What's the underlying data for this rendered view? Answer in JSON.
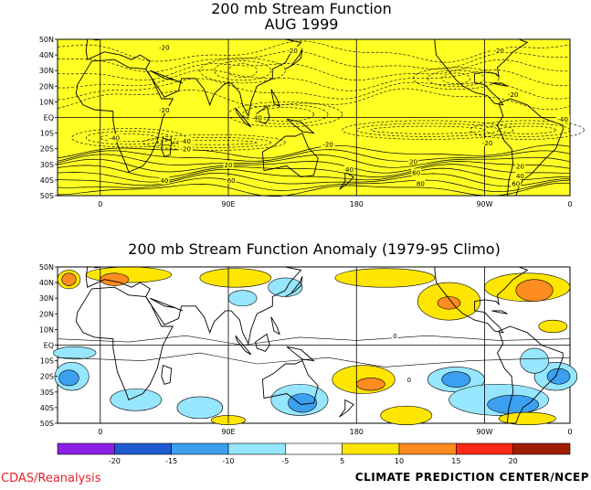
{
  "top_panel": {
    "title_line1": "200 mb Stream Function",
    "title_line2": "AUG 1999",
    "lat_labels": [
      "50N",
      "40N",
      "30N",
      "20N",
      "10N",
      "EQ",
      "10S",
      "20S",
      "30S",
      "40S",
      "50S"
    ],
    "lon_labels": [
      "0",
      "90E",
      "180",
      "90W",
      "0"
    ],
    "contour_labels": [
      {
        "text": "-20",
        "lon": 45,
        "lat": 45
      },
      {
        "text": "-20",
        "lon": 135,
        "lat": 43
      },
      {
        "text": "-20",
        "lon": 280,
        "lat": 43
      },
      {
        "text": "-20",
        "lon": 45,
        "lat": 5
      },
      {
        "text": "-40",
        "lon": 110,
        "lat": 0
      },
      {
        "text": "-40",
        "lon": 10,
        "lat": -13
      },
      {
        "text": "-40",
        "lon": 60,
        "lat": -15
      },
      {
        "text": "-20",
        "lon": 60,
        "lat": -20
      },
      {
        "text": "-20",
        "lon": 160,
        "lat": -17
      },
      {
        "text": "-20",
        "lon": 272,
        "lat": -16
      },
      {
        "text": "-20",
        "lon": 290,
        "lat": 15
      },
      {
        "text": "-40",
        "lon": 325,
        "lat": -1
      },
      {
        "text": "20",
        "lon": 90,
        "lat": -30
      },
      {
        "text": "40",
        "lon": 45,
        "lat": -40
      },
      {
        "text": "60",
        "lon": 92,
        "lat": -40
      },
      {
        "text": "40",
        "lon": 175,
        "lat": -33
      },
      {
        "text": "20",
        "lon": 220,
        "lat": -28
      },
      {
        "text": "60",
        "lon": 222,
        "lat": -35
      },
      {
        "text": "80",
        "lon": 225,
        "lat": -42
      },
      {
        "text": "20",
        "lon": 295,
        "lat": -31
      },
      {
        "text": "40",
        "lon": 295,
        "lat": -37
      },
      {
        "text": "60",
        "lon": 292,
        "lat": -42
      }
    ]
  },
  "bottom_panel": {
    "title": "200 mb Stream Function Anomaly (1979-95 Climo)",
    "lat_labels": [
      "50N",
      "40N",
      "30N",
      "20N",
      "10N",
      "EQ",
      "10S",
      "20S",
      "30S",
      "40S",
      "50S"
    ],
    "lon_labels": [
      "0",
      "90E",
      "180",
      "90W",
      "0"
    ],
    "contour_labels": [
      {
        "text": "0",
        "lon": 207,
        "lat": 6
      },
      {
        "text": "0",
        "lon": 217,
        "lat": -22
      }
    ]
  },
  "colorbar": {
    "tick_labels": [
      "-20",
      "-15",
      "-10",
      "-5",
      "5",
      "10",
      "15",
      "20"
    ],
    "colors": [
      "#8c1ee6",
      "#1e5ad2",
      "#3ca0f0",
      "#96e6ff",
      "#ffffff",
      "#ffe600",
      "#ff8c1e",
      "#ff2814",
      "#a01e00"
    ]
  },
  "fill_colors": {
    "yellow": "#ffff33",
    "panel_yellow": "#ffff24",
    "neg_light": "#96e6ff",
    "neg_mid": "#3ca0f0",
    "pos_light": "#ffe600",
    "pos_mid": "#ff8c1e"
  },
  "footer": {
    "left": "CDAS/Reanalysis",
    "right": "CLIMATE PREDICTION CENTER/NCEP"
  }
}
